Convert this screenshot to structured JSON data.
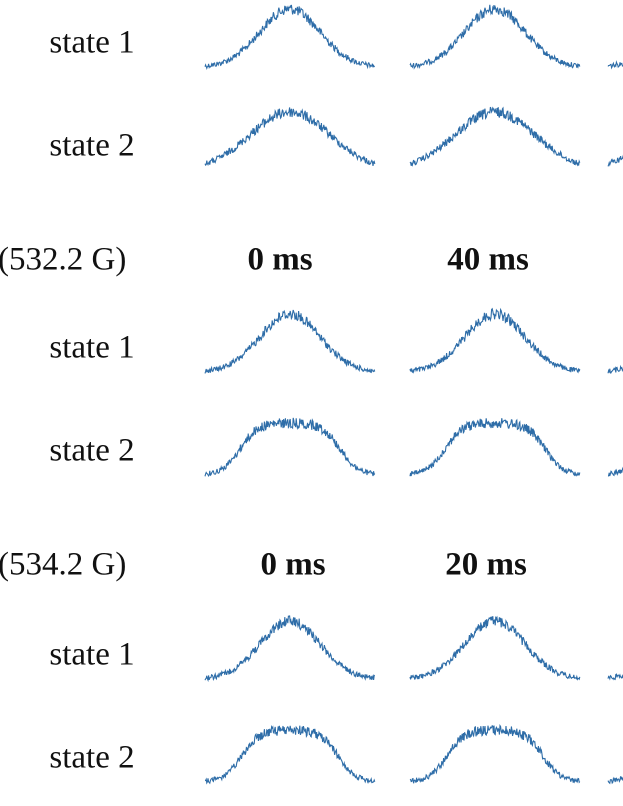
{
  "groups": [
    {
      "rows": [
        {
          "label": "state 1"
        },
        {
          "label": "state 2"
        }
      ]
    },
    {
      "field": "(532.2 G)",
      "times": [
        "0 ms",
        "40 ms"
      ],
      "rows": [
        {
          "label": "state 1"
        },
        {
          "label": "state 2"
        }
      ]
    },
    {
      "field": "(534.2 G)",
      "times": [
        "0 ms",
        "20 ms"
      ],
      "rows": [
        {
          "label": "state 1"
        },
        {
          "label": "state 2"
        }
      ]
    }
  ]
}
